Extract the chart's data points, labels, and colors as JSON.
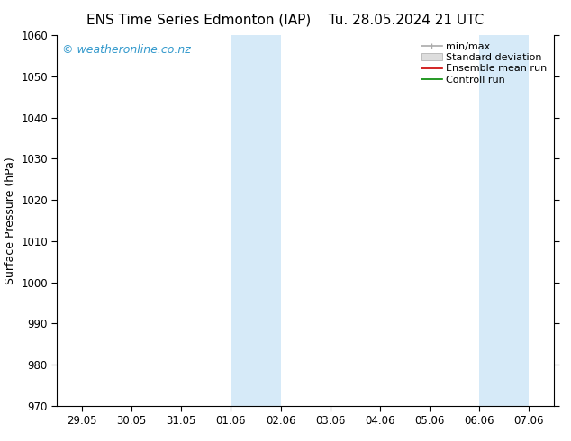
{
  "title_left": "ENS Time Series Edmonton (IAP)",
  "title_right": "Tu. 28.05.2024 21 UTC",
  "ylabel": "Surface Pressure (hPa)",
  "ylim": [
    970,
    1060
  ],
  "yticks": [
    970,
    980,
    990,
    1000,
    1010,
    1020,
    1030,
    1040,
    1050,
    1060
  ],
  "x_labels": [
    "29.05",
    "30.05",
    "31.05",
    "01.06",
    "02.06",
    "03.06",
    "04.06",
    "05.06",
    "06.06",
    "07.06"
  ],
  "x_values": [
    0,
    1,
    2,
    3,
    4,
    5,
    6,
    7,
    8,
    9
  ],
  "xlim": [
    -0.5,
    9.5
  ],
  "shaded_bands": [
    {
      "xmin": 3,
      "xmax": 4,
      "color": "#d6eaf8"
    },
    {
      "xmin": 8,
      "xmax": 9,
      "color": "#d6eaf8"
    }
  ],
  "background_color": "#ffffff",
  "plot_bg_color": "#ffffff",
  "title_fontsize": 11,
  "axis_label_fontsize": 9,
  "tick_fontsize": 8.5,
  "watermark": "© weatheronline.co.nz",
  "watermark_color": "#3399cc",
  "watermark_fontsize": 9,
  "legend_fontsize": 8,
  "minmax_color": "#aaaaaa",
  "stddev_color": "#cccccc",
  "ensemble_color": "#cc0000",
  "control_color": "#008800"
}
